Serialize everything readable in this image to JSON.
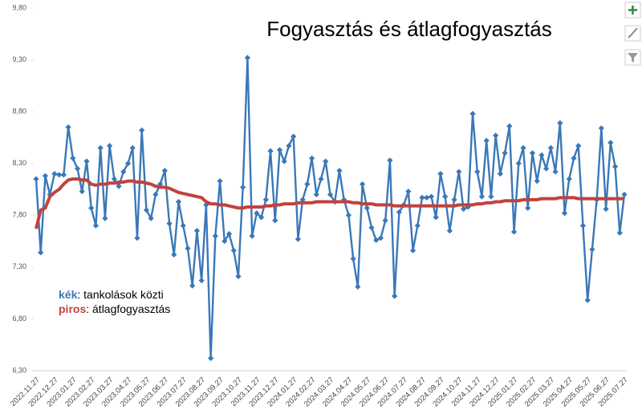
{
  "chart_data": {
    "type": "line",
    "title": "Fogyasztás és átlagfogyasztás",
    "categories": [
      "2022.11.27",
      null,
      null,
      null,
      "2022.12.27",
      null,
      null,
      null,
      "2023.01.27",
      null,
      null,
      null,
      "2023.02.27",
      null,
      null,
      null,
      "2023.03.27",
      null,
      null,
      null,
      "2023.04.27",
      null,
      null,
      null,
      "2023.05.27",
      null,
      null,
      null,
      "2023.06.27",
      null,
      null,
      null,
      "2023.07.27",
      null,
      null,
      null,
      "2023.08.27",
      null,
      null,
      null,
      "2023.09.27",
      null,
      null,
      null,
      "2023.10.27",
      null,
      null,
      null,
      "2023.11.27",
      null,
      null,
      null,
      "2023.12.27",
      null,
      null,
      null,
      "2024.01.27",
      null,
      null,
      null,
      "2024.02.27",
      null,
      null,
      null,
      "2024.03.27",
      null,
      null,
      null,
      "2024.04.27",
      null,
      null,
      null,
      "2024.05.27",
      null,
      null,
      null,
      "2024.06.27",
      null,
      null,
      null,
      "2024.07.27",
      null,
      null,
      null,
      "2024.08.27",
      null,
      null,
      null,
      "2024.09.27",
      null,
      null,
      null,
      "2024.10.27",
      null,
      null,
      null,
      "2024.11.27",
      null,
      null,
      null,
      "2024.12.27",
      null,
      null,
      null,
      "2025.01.27",
      null,
      null,
      null,
      "2025.02.27",
      null,
      null,
      null,
      "2025.03.27",
      null,
      null,
      null,
      "2025.04.27",
      null,
      null,
      null,
      "2025.05.27",
      null,
      null,
      null,
      "2025.06.27",
      null,
      null,
      null,
      "2025.07.27"
    ],
    "series": [
      {
        "name": "kék",
        "label": ": tankolások közti",
        "color": "#3a78b8",
        "marker": "diamond",
        "values": [
          8.15,
          7.44,
          8.18,
          8.0,
          8.2,
          8.19,
          8.19,
          8.65,
          8.35,
          8.25,
          8.03,
          8.32,
          7.87,
          7.7,
          8.45,
          7.77,
          8.47,
          8.15,
          8.08,
          8.22,
          8.3,
          8.45,
          7.58,
          8.62,
          7.85,
          7.77,
          8.0,
          8.1,
          8.23,
          7.72,
          7.42,
          7.93,
          7.7,
          7.48,
          7.12,
          7.65,
          7.17,
          7.9,
          6.42,
          7.6,
          8.13,
          7.55,
          7.62,
          7.46,
          7.21,
          8.07,
          9.32,
          7.6,
          7.82,
          7.78,
          7.95,
          8.42,
          7.75,
          8.43,
          8.32,
          8.47,
          8.56,
          7.57,
          7.95,
          8.1,
          8.35,
          8.0,
          8.15,
          8.32,
          8.0,
          7.93,
          8.23,
          7.95,
          7.8,
          7.38,
          7.11,
          8.1,
          7.87,
          7.68,
          7.56,
          7.58,
          7.75,
          8.33,
          7.02,
          7.83,
          7.9,
          8.03,
          7.46,
          7.7,
          7.97,
          7.97,
          7.98,
          7.78,
          8.2,
          7.98,
          7.65,
          7.95,
          8.22,
          7.86,
          7.88,
          8.78,
          8.22,
          7.98,
          8.52,
          7.98,
          8.57,
          8.2,
          8.4,
          8.66,
          7.64,
          8.3,
          8.45,
          7.87,
          8.4,
          8.13,
          8.38,
          8.25,
          8.45,
          8.22,
          8.69,
          7.82,
          8.15,
          8.35,
          8.47,
          7.7,
          6.98,
          7.47,
          7.95,
          8.64,
          7.86,
          8.5,
          8.27,
          7.63,
          8.0
        ]
      },
      {
        "name": "piros",
        "label": ": átlagfogyasztás",
        "color": "#c0423c",
        "values": [
          7.67,
          7.85,
          7.87,
          7.98,
          8.02,
          8.05,
          8.1,
          8.14,
          8.15,
          8.15,
          8.14,
          8.14,
          8.1,
          8.09,
          8.1,
          8.1,
          8.11,
          8.11,
          8.12,
          8.12,
          8.13,
          8.13,
          8.12,
          8.12,
          8.11,
          8.1,
          8.08,
          8.07,
          8.07,
          8.06,
          8.04,
          8.02,
          8.01,
          8.0,
          7.99,
          7.98,
          7.97,
          7.93,
          7.91,
          7.91,
          7.9,
          7.9,
          7.89,
          7.88,
          7.87,
          7.87,
          7.88,
          7.88,
          7.88,
          7.88,
          7.89,
          7.89,
          7.9,
          7.9,
          7.91,
          7.91,
          7.91,
          7.92,
          7.92,
          7.92,
          7.92,
          7.93,
          7.93,
          7.93,
          7.93,
          7.93,
          7.93,
          7.93,
          7.93,
          7.92,
          7.92,
          7.91,
          7.91,
          7.91,
          7.9,
          7.9,
          7.9,
          7.9,
          7.89,
          7.89,
          7.89,
          7.89,
          7.89,
          7.89,
          7.89,
          7.89,
          7.89,
          7.89,
          7.89,
          7.89,
          7.89,
          7.89,
          7.9,
          7.9,
          7.9,
          7.9,
          7.91,
          7.91,
          7.92,
          7.92,
          7.93,
          7.93,
          7.94,
          7.94,
          7.94,
          7.94,
          7.95,
          7.95,
          7.95,
          7.95,
          7.96,
          7.96,
          7.96,
          7.96,
          7.97,
          7.97,
          7.97,
          7.97,
          7.96,
          7.96,
          7.96,
          7.96,
          7.96,
          7.96,
          7.96,
          7.96,
          7.96,
          7.96,
          7.96
        ]
      }
    ],
    "ylim": [
      6.3,
      9.8
    ],
    "yticks": [
      {
        "value": 6.3,
        "label": "6,30"
      },
      {
        "value": 6.8,
        "label": "6,80"
      },
      {
        "value": 7.3,
        "label": "7,30"
      },
      {
        "value": 7.8,
        "label": "7,80"
      },
      {
        "value": 8.3,
        "label": "8,30"
      },
      {
        "value": 8.8,
        "label": "8,80"
      },
      {
        "value": 9.3,
        "label": "9,30"
      },
      {
        "value": 9.8,
        "label": "9,80"
      }
    ],
    "grid": false
  }
}
